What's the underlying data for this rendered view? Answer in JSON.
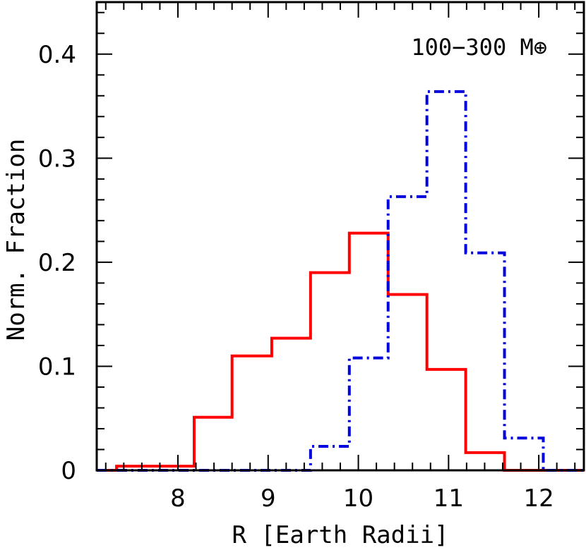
{
  "chart_data": {
    "type": "histogram",
    "xlabel": "R [Earth Radii]",
    "ylabel": "Norm. Fraction",
    "annotation": "100−300 M⊕",
    "xlim": [
      7.1,
      12.5
    ],
    "ylim": [
      0,
      0.45
    ],
    "x_ticks": [
      8,
      9,
      10,
      11,
      12
    ],
    "x_tick_labels": [
      "8",
      "9",
      "10",
      "11",
      "12"
    ],
    "y_ticks": [
      0,
      0.1,
      0.2,
      0.3,
      0.4
    ],
    "y_tick_labels": [
      "0",
      "0.1",
      "0.2",
      "0.3",
      "0.4"
    ],
    "grid": false,
    "series": [
      {
        "color": "#ff0000",
        "style": "solid",
        "bin_edges": [
          7.1,
          7.32,
          8.18,
          8.6,
          9.04,
          9.47,
          9.9,
          10.33,
          10.76,
          11.19,
          11.62,
          12.5
        ],
        "values": [
          0.0,
          0.004,
          0.051,
          0.11,
          0.127,
          0.19,
          0.228,
          0.169,
          0.097,
          0.017,
          0.0
        ]
      },
      {
        "color": "#0000dd",
        "style": "dash-dot",
        "bin_edges": [
          7.1,
          9.47,
          9.9,
          10.33,
          10.76,
          11.19,
          11.62,
          12.05,
          12.5
        ],
        "values": [
          0.0,
          0.023,
          0.108,
          0.263,
          0.364,
          0.209,
          0.031,
          0.0
        ]
      }
    ]
  }
}
